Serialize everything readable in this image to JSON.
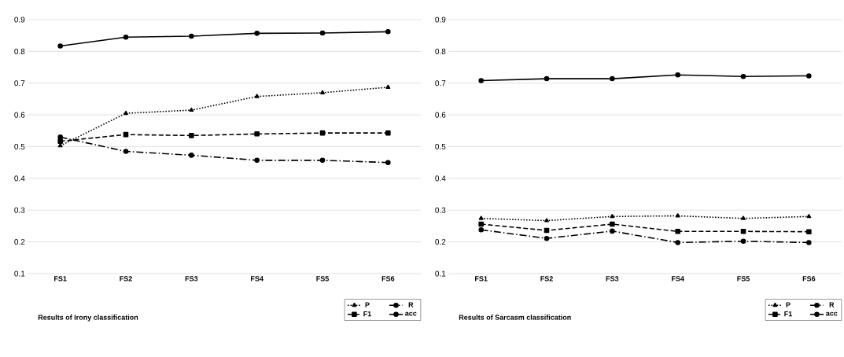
{
  "chart_data": [
    {
      "type": "line",
      "title": "Results of Irony classification",
      "categories": [
        "FS1",
        "FS2",
        "FS3",
        "FS4",
        "FS5",
        "FS6"
      ],
      "ylim": [
        0.1,
        0.9
      ],
      "yticks": [
        0.1,
        0.2,
        0.3,
        0.4,
        0.5,
        0.6,
        0.7,
        0.8,
        0.9
      ],
      "grid": "y",
      "legend": "bottom right",
      "series": [
        {
          "name": "P",
          "color": "#000000",
          "marker": "triangle",
          "line_style": "dotted",
          "values": [
            0.503,
            0.605,
            0.615,
            0.658,
            0.67,
            0.687
          ]
        },
        {
          "name": "R",
          "color": "#000000",
          "marker": "circle",
          "line_style": "dashdot",
          "values": [
            0.53,
            0.485,
            0.473,
            0.457,
            0.457,
            0.45
          ]
        },
        {
          "name": "F1",
          "color": "#000000",
          "marker": "square",
          "line_style": "dashed",
          "values": [
            0.517,
            0.538,
            0.535,
            0.54,
            0.543,
            0.543
          ]
        },
        {
          "name": "acc",
          "color": "#000000",
          "marker": "circle",
          "line_style": "solid",
          "values": [
            0.817,
            0.845,
            0.848,
            0.857,
            0.858,
            0.862
          ]
        }
      ]
    },
    {
      "type": "line",
      "title": "Results of Sarcasm classification",
      "categories": [
        "FS1",
        "FS2",
        "FS3",
        "FS4",
        "FS5",
        "FS6"
      ],
      "ylim": [
        0.1,
        0.9
      ],
      "yticks": [
        0.1,
        0.2,
        0.3,
        0.4,
        0.5,
        0.6,
        0.7,
        0.8,
        0.9
      ],
      "grid": "y",
      "legend": "bottom right",
      "series": [
        {
          "name": "P",
          "color": "#000000",
          "marker": "triangle",
          "line_style": "dotted",
          "values": [
            0.274,
            0.267,
            0.28,
            0.282,
            0.274,
            0.28
          ]
        },
        {
          "name": "R",
          "color": "#000000",
          "marker": "circle",
          "line_style": "dashdot",
          "values": [
            0.238,
            0.211,
            0.234,
            0.198,
            0.202,
            0.198
          ]
        },
        {
          "name": "F1",
          "color": "#000000",
          "marker": "square",
          "line_style": "dashed",
          "values": [
            0.256,
            0.236,
            0.256,
            0.233,
            0.233,
            0.232
          ]
        },
        {
          "name": "acc",
          "color": "#000000",
          "marker": "circle",
          "line_style": "solid",
          "values": [
            0.708,
            0.714,
            0.714,
            0.726,
            0.721,
            0.723
          ]
        }
      ]
    }
  ]
}
